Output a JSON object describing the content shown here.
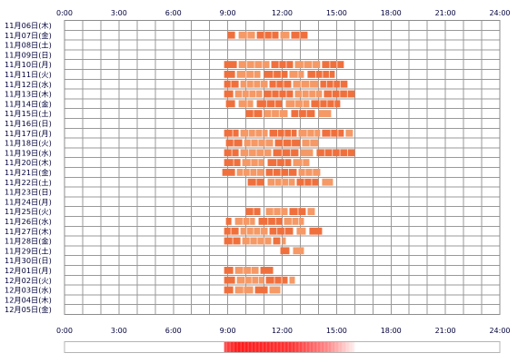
{
  "chart_data": {
    "type": "heatmap",
    "x_unit": "hour",
    "xlim": [
      0,
      24
    ],
    "x_ticks": [
      "0:00",
      "3:00",
      "6:00",
      "9:00",
      "12:00",
      "15:00",
      "18:00",
      "21:00",
      "24:00"
    ],
    "grid": true,
    "colors": {
      "activity": "#f0703d",
      "activity_light": "#f59966",
      "grid": "#999999",
      "frame": "#8c8c8c",
      "text": "#00003a"
    },
    "rows": [
      {
        "date": "11月06日(木)",
        "segments": []
      },
      {
        "date": "11月07日(金)",
        "segments": [
          [
            9.0,
            9.4
          ],
          [
            9.6,
            10.5
          ],
          [
            10.6,
            11.8
          ],
          [
            11.9,
            12.4
          ],
          [
            12.5,
            13.4
          ]
        ]
      },
      {
        "date": "11月08日(土)",
        "segments": []
      },
      {
        "date": "11月09日(日)",
        "segments": []
      },
      {
        "date": "11月10日(月)",
        "segments": [
          [
            8.8,
            9.5
          ],
          [
            9.6,
            11.3
          ],
          [
            11.4,
            12.6
          ],
          [
            12.7,
            14.1
          ],
          [
            14.2,
            15.4
          ]
        ]
      },
      {
        "date": "11月11日(火)",
        "segments": [
          [
            8.8,
            9.4
          ],
          [
            9.5,
            10.8
          ],
          [
            11.0,
            12.3
          ],
          [
            12.4,
            13.2
          ],
          [
            13.4,
            14.9
          ]
        ]
      },
      {
        "date": "11月12日(水)",
        "segments": [
          [
            8.8,
            9.6
          ],
          [
            9.7,
            11.2
          ],
          [
            11.3,
            12.5
          ],
          [
            12.6,
            14.0
          ],
          [
            14.1,
            15.6
          ]
        ]
      },
      {
        "date": "11月13日(木)",
        "segments": [
          [
            8.8,
            9.3
          ],
          [
            9.4,
            10.9
          ],
          [
            11.0,
            12.6
          ],
          [
            12.7,
            14.2
          ],
          [
            14.3,
            16.0
          ]
        ]
      },
      {
        "date": "11月14日(金)",
        "segments": [
          [
            8.9,
            9.4
          ],
          [
            9.6,
            10.4
          ],
          [
            10.6,
            12.0
          ],
          [
            12.2,
            13.5
          ],
          [
            13.6,
            15.2
          ]
        ]
      },
      {
        "date": "11月15日(土)",
        "segments": [
          [
            10.0,
            10.9
          ],
          [
            11.0,
            12.3
          ],
          [
            12.5,
            13.8
          ],
          [
            14.0,
            14.7
          ]
        ]
      },
      {
        "date": "11月16日(日)",
        "segments": []
      },
      {
        "date": "11月17日(月)",
        "segments": [
          [
            8.8,
            9.6
          ],
          [
            9.7,
            11.2
          ],
          [
            11.3,
            12.8
          ],
          [
            12.9,
            14.1
          ],
          [
            14.2,
            15.4
          ],
          [
            15.5,
            15.9
          ]
        ]
      },
      {
        "date": "11月18日(火)",
        "segments": [
          [
            8.9,
            9.8
          ],
          [
            9.9,
            11.5
          ],
          [
            11.6,
            13.0
          ],
          [
            13.1,
            14.0
          ]
        ]
      },
      {
        "date": "11月19日(水)",
        "segments": [
          [
            8.8,
            9.6
          ],
          [
            9.7,
            11.4
          ],
          [
            11.5,
            12.9
          ],
          [
            13.0,
            13.7
          ],
          [
            13.9,
            16.0
          ]
        ]
      },
      {
        "date": "11月20日(木)",
        "segments": [
          [
            8.8,
            9.7
          ],
          [
            9.8,
            11.0
          ],
          [
            11.2,
            12.5
          ],
          [
            12.6,
            13.5
          ]
        ]
      },
      {
        "date": "11月21日(金)",
        "segments": [
          [
            8.7,
            9.4
          ],
          [
            9.5,
            11.0
          ],
          [
            11.1,
            12.8
          ],
          [
            12.9,
            14.1
          ]
        ]
      },
      {
        "date": "11月22日(土)",
        "segments": [
          [
            10.1,
            11.0
          ],
          [
            11.2,
            12.7
          ],
          [
            12.8,
            14.0
          ],
          [
            14.2,
            14.8
          ]
        ]
      },
      {
        "date": "11月23日(日)",
        "segments": []
      },
      {
        "date": "11月24日(月)",
        "segments": []
      },
      {
        "date": "11月25日(火)",
        "segments": [
          [
            10.0,
            10.8
          ],
          [
            11.1,
            12.3
          ],
          [
            12.4,
            13.3
          ],
          [
            13.4,
            13.8
          ]
        ]
      },
      {
        "date": "11月26日(水)",
        "segments": [
          [
            8.9,
            9.2
          ],
          [
            9.4,
            10.5
          ],
          [
            10.7,
            12.0
          ],
          [
            12.1,
            13.2
          ]
        ]
      },
      {
        "date": "11月27日(木)",
        "segments": [
          [
            8.8,
            9.6
          ],
          [
            9.7,
            11.2
          ],
          [
            11.3,
            12.6
          ],
          [
            12.8,
            13.3
          ],
          [
            13.5,
            14.2
          ]
        ]
      },
      {
        "date": "11月28日(金)",
        "segments": [
          [
            8.8,
            9.7
          ],
          [
            9.8,
            11.4
          ],
          [
            11.5,
            11.9
          ],
          [
            12.0,
            12.2
          ]
        ]
      },
      {
        "date": "11月29日(土)",
        "segments": [
          [
            11.9,
            12.4
          ],
          [
            12.6,
            13.2
          ]
        ]
      },
      {
        "date": "11月30日(日)",
        "segments": []
      },
      {
        "date": "12月01日(月)",
        "segments": [
          [
            8.8,
            9.3
          ],
          [
            9.4,
            10.7
          ],
          [
            10.8,
            11.5
          ]
        ]
      },
      {
        "date": "12月02日(火)",
        "segments": [
          [
            8.8,
            9.4
          ],
          [
            9.5,
            11.0
          ],
          [
            11.1,
            12.3
          ],
          [
            12.4,
            12.7
          ]
        ]
      },
      {
        "date": "12月03日(水)",
        "segments": [
          [
            8.8,
            9.3
          ],
          [
            9.4,
            10.4
          ],
          [
            10.5,
            11.2
          ],
          [
            11.3,
            11.9
          ]
        ]
      },
      {
        "date": "12月04日(木)",
        "segments": []
      },
      {
        "date": "12月05日(金)",
        "segments": []
      }
    ],
    "summary_gradient": {
      "from": 8.8,
      "to": 16.0,
      "peak_from": 9.5,
      "peak_to": 12.5,
      "peak_color": "#ff1a1a",
      "edge_color": "#ffffff"
    }
  }
}
